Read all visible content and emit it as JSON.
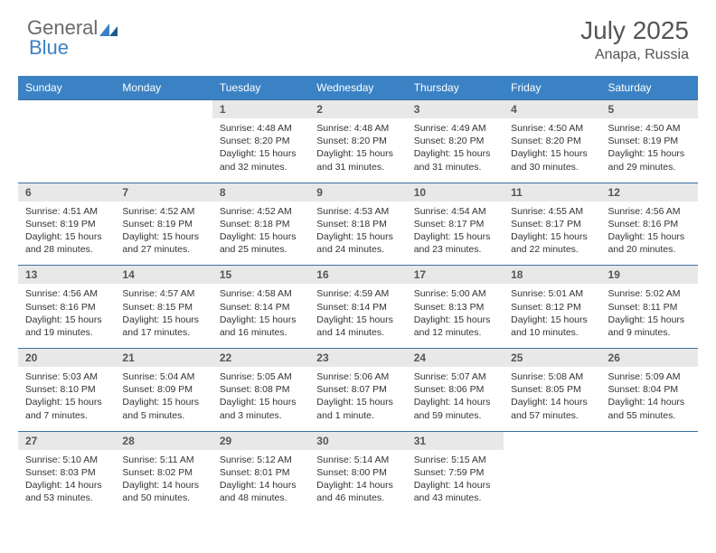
{
  "logo": {
    "part1": "General",
    "part2": "Blue"
  },
  "title": "July 2025",
  "location": "Anapa, Russia",
  "colors": {
    "header_bg": "#3b82c4",
    "header_text": "#ffffff",
    "daynum_bg": "#e8e8e8",
    "daynum_text": "#555555",
    "border": "#3b6fa0",
    "body_text": "#333333",
    "logo_gray": "#6a6a6a",
    "logo_blue": "#3b82c4"
  },
  "dow": [
    "Sunday",
    "Monday",
    "Tuesday",
    "Wednesday",
    "Thursday",
    "Friday",
    "Saturday"
  ],
  "weeks": [
    [
      null,
      null,
      {
        "n": "1",
        "sr": "4:48 AM",
        "ss": "8:20 PM",
        "dl": "15 hours and 32 minutes."
      },
      {
        "n": "2",
        "sr": "4:48 AM",
        "ss": "8:20 PM",
        "dl": "15 hours and 31 minutes."
      },
      {
        "n": "3",
        "sr": "4:49 AM",
        "ss": "8:20 PM",
        "dl": "15 hours and 31 minutes."
      },
      {
        "n": "4",
        "sr": "4:50 AM",
        "ss": "8:20 PM",
        "dl": "15 hours and 30 minutes."
      },
      {
        "n": "5",
        "sr": "4:50 AM",
        "ss": "8:19 PM",
        "dl": "15 hours and 29 minutes."
      }
    ],
    [
      {
        "n": "6",
        "sr": "4:51 AM",
        "ss": "8:19 PM",
        "dl": "15 hours and 28 minutes."
      },
      {
        "n": "7",
        "sr": "4:52 AM",
        "ss": "8:19 PM",
        "dl": "15 hours and 27 minutes."
      },
      {
        "n": "8",
        "sr": "4:52 AM",
        "ss": "8:18 PM",
        "dl": "15 hours and 25 minutes."
      },
      {
        "n": "9",
        "sr": "4:53 AM",
        "ss": "8:18 PM",
        "dl": "15 hours and 24 minutes."
      },
      {
        "n": "10",
        "sr": "4:54 AM",
        "ss": "8:17 PM",
        "dl": "15 hours and 23 minutes."
      },
      {
        "n": "11",
        "sr": "4:55 AM",
        "ss": "8:17 PM",
        "dl": "15 hours and 22 minutes."
      },
      {
        "n": "12",
        "sr": "4:56 AM",
        "ss": "8:16 PM",
        "dl": "15 hours and 20 minutes."
      }
    ],
    [
      {
        "n": "13",
        "sr": "4:56 AM",
        "ss": "8:16 PM",
        "dl": "15 hours and 19 minutes."
      },
      {
        "n": "14",
        "sr": "4:57 AM",
        "ss": "8:15 PM",
        "dl": "15 hours and 17 minutes."
      },
      {
        "n": "15",
        "sr": "4:58 AM",
        "ss": "8:14 PM",
        "dl": "15 hours and 16 minutes."
      },
      {
        "n": "16",
        "sr": "4:59 AM",
        "ss": "8:14 PM",
        "dl": "15 hours and 14 minutes."
      },
      {
        "n": "17",
        "sr": "5:00 AM",
        "ss": "8:13 PM",
        "dl": "15 hours and 12 minutes."
      },
      {
        "n": "18",
        "sr": "5:01 AM",
        "ss": "8:12 PM",
        "dl": "15 hours and 10 minutes."
      },
      {
        "n": "19",
        "sr": "5:02 AM",
        "ss": "8:11 PM",
        "dl": "15 hours and 9 minutes."
      }
    ],
    [
      {
        "n": "20",
        "sr": "5:03 AM",
        "ss": "8:10 PM",
        "dl": "15 hours and 7 minutes."
      },
      {
        "n": "21",
        "sr": "5:04 AM",
        "ss": "8:09 PM",
        "dl": "15 hours and 5 minutes."
      },
      {
        "n": "22",
        "sr": "5:05 AM",
        "ss": "8:08 PM",
        "dl": "15 hours and 3 minutes."
      },
      {
        "n": "23",
        "sr": "5:06 AM",
        "ss": "8:07 PM",
        "dl": "15 hours and 1 minute."
      },
      {
        "n": "24",
        "sr": "5:07 AM",
        "ss": "8:06 PM",
        "dl": "14 hours and 59 minutes."
      },
      {
        "n": "25",
        "sr": "5:08 AM",
        "ss": "8:05 PM",
        "dl": "14 hours and 57 minutes."
      },
      {
        "n": "26",
        "sr": "5:09 AM",
        "ss": "8:04 PM",
        "dl": "14 hours and 55 minutes."
      }
    ],
    [
      {
        "n": "27",
        "sr": "5:10 AM",
        "ss": "8:03 PM",
        "dl": "14 hours and 53 minutes."
      },
      {
        "n": "28",
        "sr": "5:11 AM",
        "ss": "8:02 PM",
        "dl": "14 hours and 50 minutes."
      },
      {
        "n": "29",
        "sr": "5:12 AM",
        "ss": "8:01 PM",
        "dl": "14 hours and 48 minutes."
      },
      {
        "n": "30",
        "sr": "5:14 AM",
        "ss": "8:00 PM",
        "dl": "14 hours and 46 minutes."
      },
      {
        "n": "31",
        "sr": "5:15 AM",
        "ss": "7:59 PM",
        "dl": "14 hours and 43 minutes."
      },
      null,
      null
    ]
  ],
  "labels": {
    "sunrise": "Sunrise:",
    "sunset": "Sunset:",
    "daylight": "Daylight:"
  }
}
